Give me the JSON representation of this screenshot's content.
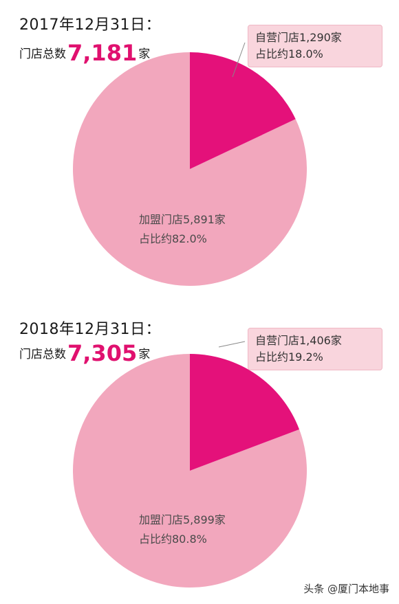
{
  "chart_data": [
    {
      "type": "pie",
      "title": "2017年12月31日：",
      "total_prefix": "门店总数",
      "total_value": "7,181",
      "total_suffix": "家",
      "slices": [
        {
          "name": "加盟门店",
          "value": 5891,
          "share": 82.0,
          "color": "#f2a7bd"
        },
        {
          "name": "自营门店",
          "value": 1290,
          "share": 18.0,
          "color": "#e4117a"
        }
      ],
      "labels": {
        "own_line1": "自营门店1,290家",
        "own_line2": "占比约18.0%",
        "fr_line1": "加盟门店5,891家",
        "fr_line2": "占比约82.0%"
      }
    },
    {
      "type": "pie",
      "title": "2018年12月31日：",
      "total_prefix": "门店总数",
      "total_value": "7,305",
      "total_suffix": "家",
      "slices": [
        {
          "name": "加盟门店",
          "value": 5899,
          "share": 80.8,
          "color": "#f2a7bd"
        },
        {
          "name": "自营门店",
          "value": 1406,
          "share": 19.2,
          "color": "#e4117a"
        }
      ],
      "labels": {
        "own_line1": "自营门店1,406家",
        "own_line2": "占比约19.2%",
        "fr_line1": "加盟门店5,899家",
        "fr_line2": "占比约80.8%"
      }
    }
  ],
  "watermark": "头条 @厦门本地事"
}
